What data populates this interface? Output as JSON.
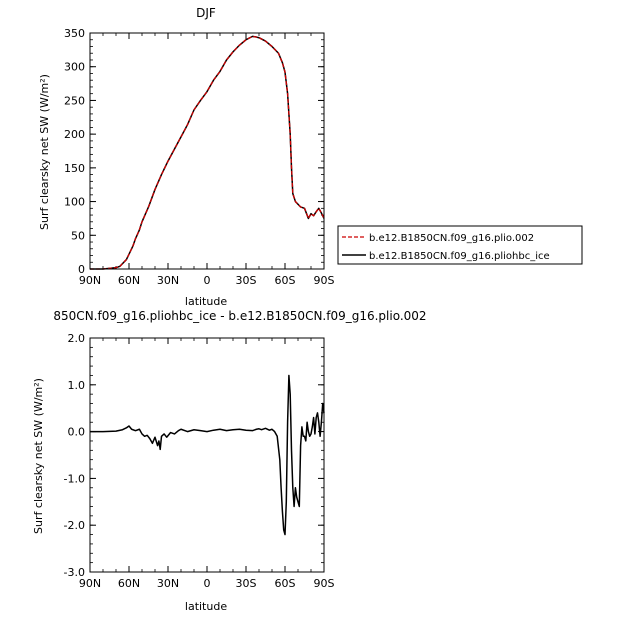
{
  "chart_data": [
    {
      "type": "line",
      "title": "DJF",
      "xlabel": "latitude",
      "ylabel": "Surf clearsky net SW (W/m²)",
      "xlim": [
        -90,
        90
      ],
      "ylim": [
        0,
        350
      ],
      "x_ticks": [
        {
          "value": -90,
          "label": "90N"
        },
        {
          "value": -60,
          "label": "60N"
        },
        {
          "value": -30,
          "label": "30N"
        },
        {
          "value": 0,
          "label": "0"
        },
        {
          "value": 30,
          "label": "30S"
        },
        {
          "value": 60,
          "label": "60S"
        },
        {
          "value": 90,
          "label": "90S"
        }
      ],
      "y_ticks": [
        {
          "value": 0,
          "label": "0"
        },
        {
          "value": 50,
          "label": "50"
        },
        {
          "value": 100,
          "label": "100"
        },
        {
          "value": 150,
          "label": "150"
        },
        {
          "value": 200,
          "label": "200"
        },
        {
          "value": 250,
          "label": "250"
        },
        {
          "value": 300,
          "label": "300"
        },
        {
          "value": 350,
          "label": "350"
        }
      ],
      "legend_position": "right",
      "series": [
        {
          "name": "b.e12.B1850CN.f09_g16.plio.002",
          "color": "#cc0000",
          "style": "dashed",
          "x": [
            -90,
            -80,
            -75,
            -70,
            -67,
            -65,
            -62,
            -60,
            -57,
            -55,
            -52,
            -50,
            -45,
            -40,
            -35,
            -30,
            -25,
            -20,
            -15,
            -10,
            -5,
            0,
            5,
            10,
            15,
            20,
            25,
            30,
            35,
            38,
            40,
            45,
            50,
            55,
            58,
            60,
            62,
            64,
            65,
            66,
            68,
            70,
            72,
            75,
            78,
            80,
            82,
            84,
            86,
            88,
            90
          ],
          "y": [
            0,
            0,
            1,
            2,
            4,
            8,
            14,
            22,
            34,
            45,
            58,
            70,
            92,
            118,
            140,
            160,
            178,
            196,
            214,
            236,
            250,
            263,
            280,
            293,
            310,
            322,
            332,
            340,
            345,
            344,
            343,
            338,
            330,
            320,
            306,
            292,
            260,
            200,
            150,
            112,
            100,
            96,
            92,
            90,
            75,
            82,
            79,
            85,
            90,
            83,
            75
          ]
        },
        {
          "name": "b.e12.B1850CN.f09_g16.pliohbc_ice",
          "color": "#000000",
          "style": "solid",
          "x": [
            -90,
            -80,
            -75,
            -70,
            -67,
            -65,
            -62,
            -60,
            -57,
            -55,
            -52,
            -50,
            -45,
            -40,
            -35,
            -30,
            -25,
            -20,
            -15,
            -10,
            -5,
            0,
            5,
            10,
            15,
            20,
            25,
            30,
            35,
            38,
            40,
            45,
            50,
            55,
            58,
            60,
            62,
            64,
            65,
            66,
            68,
            70,
            72,
            75,
            78,
            80,
            82,
            84,
            86,
            88,
            90
          ],
          "y": [
            0,
            0,
            1,
            2,
            4,
            8,
            14,
            22,
            34,
            45,
            58,
            70,
            92,
            118,
            140,
            160,
            178,
            196,
            214,
            236,
            250,
            263,
            280,
            293,
            310,
            322,
            332,
            340,
            345,
            344,
            343,
            338,
            330,
            320,
            306,
            292,
            260,
            200,
            150,
            112,
            100,
            96,
            92,
            90,
            75,
            82,
            79,
            85,
            90,
            83,
            75
          ]
        }
      ]
    },
    {
      "type": "line",
      "title": "850CN.f09_g16.pliohbc_ice - b.e12.B1850CN.f09_g16.plio.002",
      "xlabel": "latitude",
      "ylabel": "Surf clearsky net SW (W/m²)",
      "xlim": [
        -90,
        90
      ],
      "ylim": [
        -3.0,
        2.0
      ],
      "x_ticks": [
        {
          "value": -90,
          "label": "90N"
        },
        {
          "value": -60,
          "label": "60N"
        },
        {
          "value": -30,
          "label": "30N"
        },
        {
          "value": 0,
          "label": "0"
        },
        {
          "value": 30,
          "label": "30S"
        },
        {
          "value": 60,
          "label": "60S"
        },
        {
          "value": 90,
          "label": "90S"
        }
      ],
      "y_ticks": [
        {
          "value": -3.0,
          "label": "-3.0"
        },
        {
          "value": -2.0,
          "label": "-2.0"
        },
        {
          "value": -1.0,
          "label": "-1.0"
        },
        {
          "value": 0.0,
          "label": "0.0"
        },
        {
          "value": 1.0,
          "label": "1.0"
        },
        {
          "value": 2.0,
          "label": "2.0"
        }
      ],
      "series": [
        {
          "color": "#000000",
          "style": "solid",
          "x": [
            -90,
            -80,
            -70,
            -65,
            -62,
            -60,
            -58,
            -55,
            -52,
            -50,
            -48,
            -46,
            -44,
            -42,
            -40,
            -38,
            -37,
            -36,
            -35,
            -33,
            -31,
            -28,
            -25,
            -22,
            -20,
            -15,
            -10,
            -5,
            0,
            5,
            10,
            15,
            20,
            25,
            30,
            35,
            38,
            40,
            42,
            45,
            48,
            50,
            52,
            54,
            56,
            57,
            58,
            59,
            60,
            61,
            62,
            63,
            64,
            65,
            66,
            67,
            68,
            69,
            70,
            71,
            72,
            73,
            74,
            75,
            76,
            77,
            78,
            79,
            80,
            81,
            82,
            83,
            84,
            85,
            86,
            87,
            88,
            89,
            90
          ],
          "y": [
            0,
            0,
            0.01,
            0.04,
            0.08,
            0.12,
            0.05,
            0.02,
            0.05,
            -0.05,
            -0.1,
            -0.08,
            -0.15,
            -0.25,
            -0.12,
            -0.3,
            -0.2,
            -0.38,
            -0.1,
            -0.05,
            -0.12,
            -0.02,
            -0.05,
            0.02,
            0.05,
            0,
            0.04,
            0.02,
            0,
            0.03,
            0.05,
            0.02,
            0.04,
            0.05,
            0.03,
            0.02,
            0.05,
            0.06,
            0.04,
            0.07,
            0.03,
            0.05,
            0.0,
            -0.1,
            -0.6,
            -1.2,
            -1.7,
            -2.1,
            -2.2,
            -1.5,
            0.2,
            1.2,
            0.8,
            -0.4,
            -1.2,
            -1.6,
            -1.2,
            -1.4,
            -1.5,
            -1.6,
            -0.3,
            0.1,
            -0.1,
            -0.1,
            -0.2,
            0.2,
            0.0,
            -0.1,
            -0.05,
            0.1,
            0.3,
            -0.05,
            0.3,
            0.4,
            0.2,
            -0.1,
            0.2,
            0.6,
            0.4
          ]
        }
      ]
    }
  ]
}
